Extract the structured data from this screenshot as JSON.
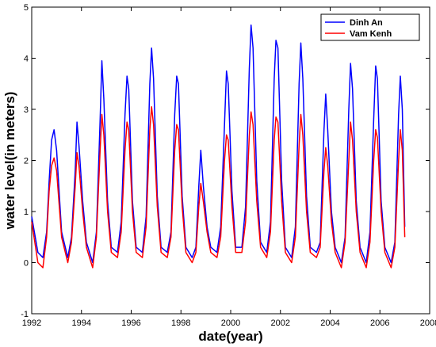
{
  "chart_data": {
    "type": "line",
    "xlabel": "date(year)",
    "ylabel": "water level(in meters)",
    "xlim": [
      1992,
      2008
    ],
    "ylim": [
      -1,
      5
    ],
    "xticks": [
      1992,
      1994,
      1996,
      1998,
      2000,
      2002,
      2004,
      2006,
      2008
    ],
    "yticks": [
      -1,
      0,
      1,
      2,
      3,
      4,
      5
    ],
    "xtick_labels": [
      "1992",
      "1994",
      "1996",
      "1998",
      "2000",
      "2002",
      "2004",
      "2006",
      "2008"
    ],
    "ytick_labels": [
      "-1",
      "0",
      "1",
      "2",
      "3",
      "4",
      "5"
    ],
    "legend_position": "top-right",
    "grid": false,
    "series": [
      {
        "name": "Dinh An",
        "color": "#0000ff",
        "x": [
          1992.0,
          1992.25,
          1992.45,
          1992.6,
          1992.7,
          1992.8,
          1992.9,
          1993.0,
          1993.2,
          1993.45,
          1993.6,
          1993.75,
          1993.82,
          1993.9,
          1994.05,
          1994.2,
          1994.45,
          1994.6,
          1994.75,
          1994.82,
          1994.9,
          1995.05,
          1995.2,
          1995.45,
          1995.6,
          1995.75,
          1995.83,
          1995.9,
          1996.05,
          1996.2,
          1996.45,
          1996.6,
          1996.75,
          1996.82,
          1996.9,
          1997.05,
          1997.2,
          1997.45,
          1997.6,
          1997.75,
          1997.83,
          1997.9,
          1998.05,
          1998.2,
          1998.45,
          1998.6,
          1998.72,
          1998.8,
          1998.9,
          1999.05,
          1999.2,
          1999.45,
          1999.6,
          1999.75,
          1999.83,
          1999.9,
          2000.05,
          2000.2,
          2000.45,
          2000.6,
          2000.75,
          2000.82,
          2000.9,
          2001.05,
          2001.2,
          2001.45,
          2001.6,
          2001.75,
          2001.82,
          2001.9,
          2002.05,
          2002.2,
          2002.45,
          2002.6,
          2002.75,
          2002.82,
          2002.9,
          2003.05,
          2003.2,
          2003.45,
          2003.6,
          2003.75,
          2003.82,
          2003.9,
          2004.05,
          2004.2,
          2004.45,
          2004.6,
          2004.75,
          2004.82,
          2004.9,
          2005.05,
          2005.2,
          2005.45,
          2005.6,
          2005.75,
          2005.83,
          2005.9,
          2006.05,
          2006.2,
          2006.45,
          2006.6,
          2006.75,
          2006.82,
          2006.9,
          2007.0
        ],
        "y": [
          0.9,
          0.2,
          0.1,
          0.6,
          1.6,
          2.4,
          2.6,
          2.2,
          0.6,
          0.1,
          0.5,
          1.8,
          2.75,
          2.3,
          1.2,
          0.4,
          0.0,
          0.6,
          2.8,
          3.95,
          3.2,
          1.2,
          0.3,
          0.2,
          0.8,
          2.9,
          3.65,
          3.4,
          1.2,
          0.3,
          0.2,
          0.9,
          3.5,
          4.2,
          3.6,
          1.3,
          0.3,
          0.2,
          0.6,
          2.9,
          3.65,
          3.5,
          1.3,
          0.3,
          0.1,
          0.3,
          1.5,
          2.2,
          1.5,
          0.7,
          0.3,
          0.2,
          0.7,
          2.7,
          3.75,
          3.5,
          1.4,
          0.3,
          0.3,
          1.1,
          3.8,
          4.65,
          4.2,
          1.6,
          0.4,
          0.2,
          0.8,
          3.6,
          4.35,
          4.2,
          1.6,
          0.3,
          0.1,
          0.7,
          3.5,
          4.3,
          3.6,
          1.3,
          0.3,
          0.2,
          0.4,
          2.6,
          3.3,
          2.6,
          1.0,
          0.3,
          0.0,
          0.5,
          3.0,
          3.9,
          3.4,
          1.2,
          0.3,
          0.0,
          0.6,
          2.8,
          3.85,
          3.6,
          1.2,
          0.3,
          0.0,
          0.4,
          2.9,
          3.65,
          3.0,
          0.7
        ]
      },
      {
        "name": "Vam Kenh",
        "color": "#ff0000",
        "x": [
          1992.0,
          1992.25,
          1992.45,
          1992.6,
          1992.7,
          1992.8,
          1992.9,
          1993.0,
          1993.2,
          1993.45,
          1993.6,
          1993.75,
          1993.82,
          1993.9,
          1994.05,
          1994.2,
          1994.45,
          1994.6,
          1994.75,
          1994.82,
          1994.9,
          1995.05,
          1995.2,
          1995.45,
          1995.6,
          1995.75,
          1995.83,
          1995.9,
          1996.05,
          1996.2,
          1996.45,
          1996.6,
          1996.75,
          1996.82,
          1996.9,
          1997.05,
          1997.2,
          1997.45,
          1997.6,
          1997.75,
          1997.83,
          1997.9,
          1998.05,
          1998.2,
          1998.45,
          1998.6,
          1998.72,
          1998.8,
          1998.9,
          1999.05,
          1999.2,
          1999.45,
          1999.6,
          1999.75,
          1999.83,
          1999.9,
          2000.05,
          2000.2,
          2000.45,
          2000.6,
          2000.75,
          2000.82,
          2000.9,
          2001.05,
          2001.2,
          2001.45,
          2001.6,
          2001.75,
          2001.82,
          2001.9,
          2002.05,
          2002.2,
          2002.45,
          2002.6,
          2002.75,
          2002.82,
          2002.9,
          2003.05,
          2003.2,
          2003.45,
          2003.6,
          2003.75,
          2003.82,
          2003.9,
          2004.05,
          2004.2,
          2004.45,
          2004.6,
          2004.75,
          2004.82,
          2004.9,
          2005.05,
          2005.2,
          2005.45,
          2005.6,
          2005.75,
          2005.83,
          2005.9,
          2006.05,
          2006.2,
          2006.45,
          2006.6,
          2006.75,
          2006.82,
          2006.9,
          2007.0
        ],
        "y": [
          0.8,
          0.0,
          -0.1,
          0.5,
          1.4,
          1.9,
          2.05,
          1.8,
          0.5,
          0.0,
          0.4,
          1.5,
          2.15,
          1.9,
          1.0,
          0.3,
          -0.1,
          0.5,
          2.2,
          2.9,
          2.5,
          1.0,
          0.2,
          0.1,
          0.6,
          2.2,
          2.75,
          2.6,
          1.0,
          0.2,
          0.1,
          0.7,
          2.6,
          3.05,
          2.7,
          1.1,
          0.2,
          0.1,
          0.5,
          2.2,
          2.7,
          2.6,
          1.1,
          0.2,
          0.0,
          0.2,
          1.1,
          1.55,
          1.2,
          0.6,
          0.2,
          0.1,
          0.5,
          2.0,
          2.5,
          2.4,
          1.1,
          0.2,
          0.2,
          0.8,
          2.5,
          2.95,
          2.7,
          1.2,
          0.3,
          0.1,
          0.6,
          2.4,
          2.85,
          2.75,
          1.2,
          0.2,
          0.0,
          0.5,
          2.3,
          2.9,
          2.5,
          1.0,
          0.2,
          0.1,
          0.3,
          1.8,
          2.25,
          1.9,
          0.8,
          0.2,
          -0.1,
          0.4,
          2.0,
          2.75,
          2.4,
          1.0,
          0.2,
          -0.1,
          0.4,
          2.0,
          2.6,
          2.45,
          1.0,
          0.2,
          -0.1,
          0.3,
          2.0,
          2.6,
          2.2,
          0.5
        ]
      }
    ]
  }
}
